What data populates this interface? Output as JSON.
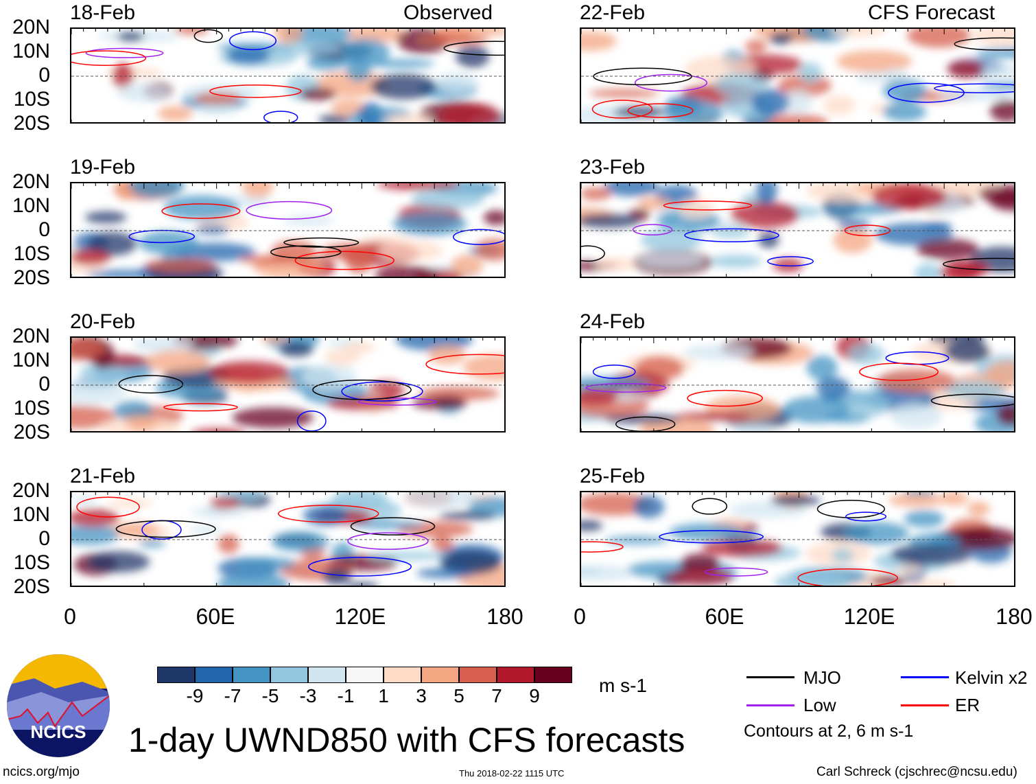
{
  "header": {
    "left_label": "Observed",
    "right_label": "CFS Forecast"
  },
  "panels_left": [
    {
      "date": "18-Feb"
    },
    {
      "date": "19-Feb"
    },
    {
      "date": "20-Feb"
    },
    {
      "date": "21-Feb"
    }
  ],
  "panels_right": [
    {
      "date": "22-Feb"
    },
    {
      "date": "23-Feb"
    },
    {
      "date": "24-Feb"
    },
    {
      "date": "25-Feb"
    }
  ],
  "lat_labels": [
    "20N",
    "10N",
    "0",
    "10S",
    "20S"
  ],
  "lon_labels": [
    "0",
    "60E",
    "120E",
    "180"
  ],
  "colorbar": {
    "labels": [
      "-9",
      "-7",
      "-5",
      "-3",
      "-1",
      "1",
      "3",
      "5",
      "7",
      "9"
    ],
    "colors": [
      "#1f3668",
      "#2166ac",
      "#4393c3",
      "#92c5de",
      "#d1e5f0",
      "#f7f7f7",
      "#fddbc7",
      "#f4a582",
      "#d6604d",
      "#b2182b",
      "#67001f"
    ],
    "units": "m s-1"
  },
  "legend": {
    "items": [
      {
        "label": "MJO",
        "color": "#000000"
      },
      {
        "label": "Kelvin x2",
        "color": "#0000ff"
      },
      {
        "label": "Low",
        "color": "#a020f0"
      },
      {
        "label": "ER",
        "color": "#ff0000"
      }
    ],
    "note": "Contours at 2, 6 m s-1"
  },
  "title": "1-day UWND850 with CFS forecasts",
  "logo_text": "NCICS",
  "footer": {
    "url": "ncics.org/mjo",
    "timestamp": "Thu 2018-02-22 1115 UTC",
    "credit": "Carl Schreck (cjschrec@ncsu.edu)"
  }
}
